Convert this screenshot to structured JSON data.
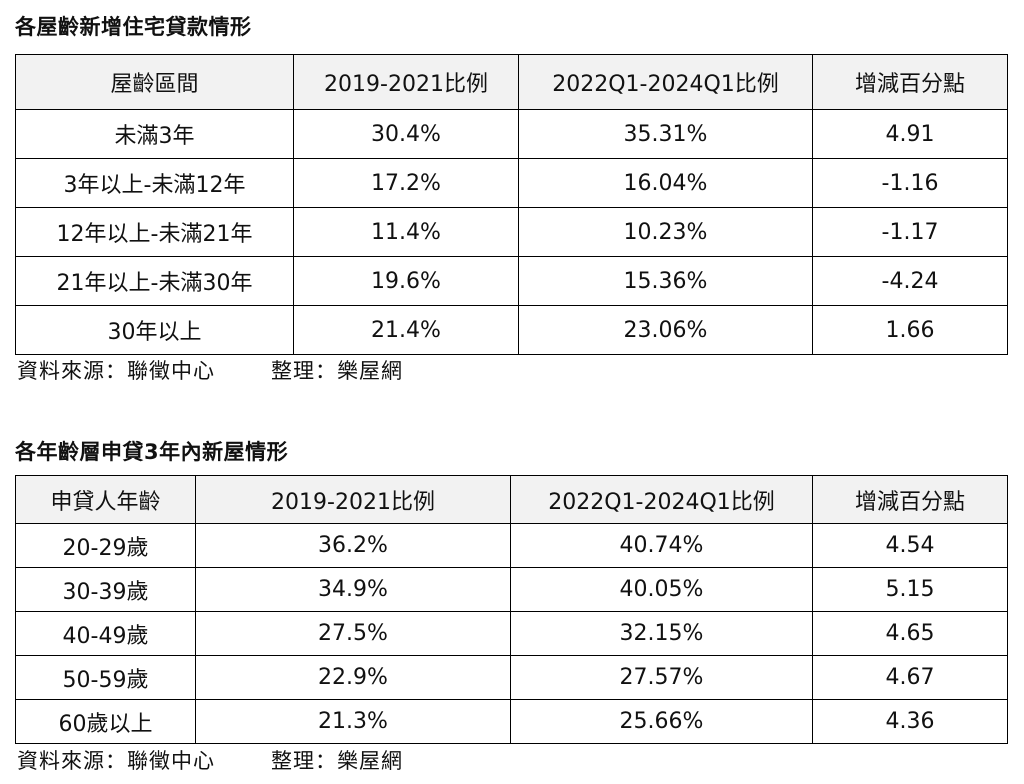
{
  "table1": {
    "title": "各屋齡新增住宅貸款情形",
    "headers": [
      "屋齡區間",
      "2019-2021比例",
      "2022Q1-2024Q1比例",
      "增減百分點"
    ],
    "rows": [
      [
        "未滿3年",
        "30.4%",
        "35.31%",
        "4.91"
      ],
      [
        "3年以上-未滿12年",
        "17.2%",
        "16.04%",
        "-1.16"
      ],
      [
        "12年以上-未滿21年",
        "11.4%",
        "10.23%",
        "-1.17"
      ],
      [
        "21年以上-未滿30年",
        "19.6%",
        "15.36%",
        "-4.24"
      ],
      [
        "30年以上",
        "21.4%",
        "23.06%",
        "1.66"
      ]
    ],
    "source": "資料來源：聯徵中心",
    "compiled": "整理：樂屋網"
  },
  "table2": {
    "title": "各年齡層申貸3年內新屋情形",
    "headers": [
      "申貸人年齡",
      "2019-2021比例",
      "2022Q1-2024Q1比例",
      "增減百分點"
    ],
    "rows": [
      [
        "20-29歲",
        "36.2%",
        "40.74%",
        "4.54"
      ],
      [
        "30-39歲",
        "34.9%",
        "40.05%",
        "5.15"
      ],
      [
        "40-49歲",
        "27.5%",
        "32.15%",
        "4.65"
      ],
      [
        "50-59歲",
        "22.9%",
        "27.57%",
        "4.67"
      ],
      [
        "60歲以上",
        "21.3%",
        "25.66%",
        "4.36"
      ]
    ],
    "source": "資料來源：聯徵中心",
    "compiled": "整理：樂屋網"
  }
}
